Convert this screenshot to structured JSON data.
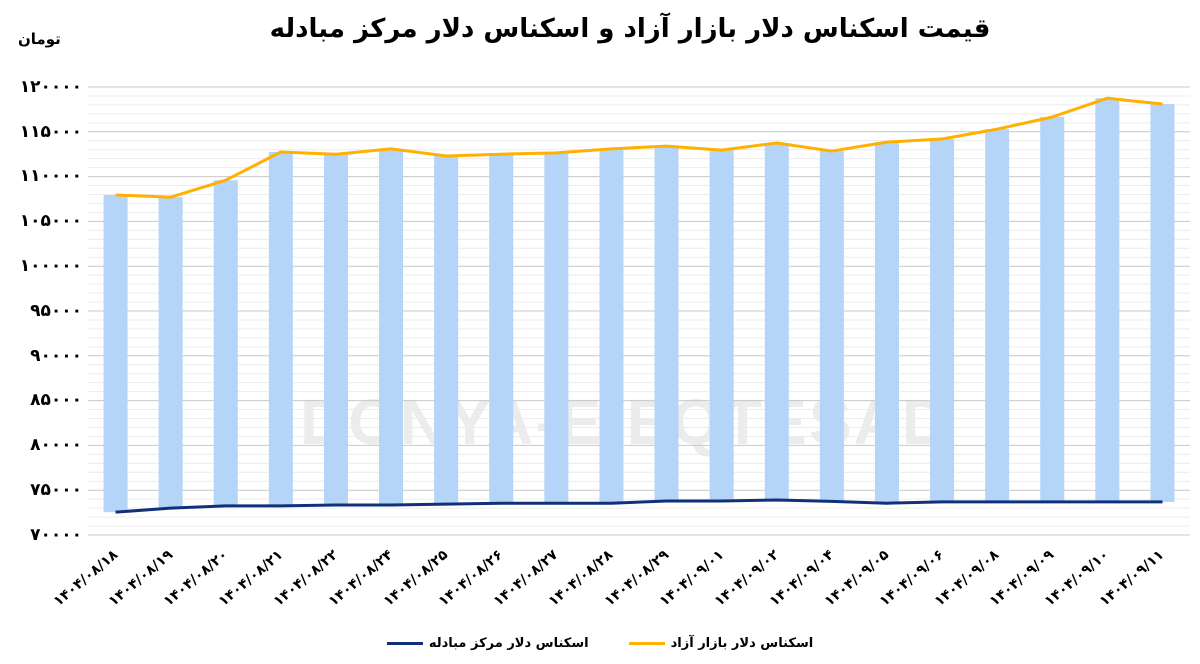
{
  "header": {
    "title": "قیمت اسکناس دلار بازار آزاد و اسکناس دلار مرکز مبادله",
    "unit_label": "تومان"
  },
  "watermark": "DONYA-E-EQTESAD",
  "colors": {
    "bar_fill": "#b4d4f8",
    "free_market_line": "#ffb000",
    "exchange_center_line": "#12307a",
    "major_grid": "#c8c8c8",
    "minor_grid": "#ececec"
  },
  "legend": {
    "items": [
      {
        "label": "اسکناس دلار بازار آزاد",
        "color": "#ffb000"
      },
      {
        "label": "اسکناس دلار مرکز مبادله",
        "color": "#12307a"
      }
    ]
  },
  "y_axis": {
    "ticks": [
      "۱۲۰۰۰۰",
      "۱۱۵۰۰۰",
      "۱۱۰۰۰۰",
      "۱۰۵۰۰۰",
      "۱۰۰۰۰۰",
      "۹۵۰۰۰",
      "۹۰۰۰۰",
      "۸۵۰۰۰",
      "۸۰۰۰۰",
      "۷۵۰۰۰",
      "۷۰۰۰۰"
    ]
  },
  "chart_data": {
    "type": "line",
    "title": "قیمت اسکناس دلار بازار آزاد و اسکناس دلار مرکز مبادله",
    "xlabel": "",
    "ylabel": "تومان",
    "ylim": [
      70000,
      120000
    ],
    "y_major_step": 5000,
    "y_minor_step": 1000,
    "grid": true,
    "legend_position": "bottom",
    "bars_note": "Light-blue floating bars span between the two series for each date",
    "categories": [
      "۱۴۰۴/۰۸/۱۸",
      "۱۴۰۴/۰۸/۱۹",
      "۱۴۰۴/۰۸/۲۰",
      "۱۴۰۴/۰۸/۲۱",
      "۱۴۰۴/۰۸/۲۲",
      "۱۴۰۴/۰۸/۲۴",
      "۱۴۰۴/۰۸/۲۵",
      "۱۴۰۴/۰۸/۲۶",
      "۱۴۰۴/۰۸/۲۷",
      "۱۴۰۴/۰۸/۲۸",
      "۱۴۰۴/۰۸/۲۹",
      "۱۴۰۴/۰۹/۰۱",
      "۱۴۰۴/۰۹/۰۲",
      "۱۴۰۴/۰۹/۰۴",
      "۱۴۰۴/۰۹/۰۵",
      "۱۴۰۴/۰۹/۰۶",
      "۱۴۰۴/۰۹/۰۸",
      "۱۴۰۴/۰۹/۰۹",
      "۱۴۰۴/۰۹/۱۰",
      "۱۴۰۴/۰۹/۱۱"
    ],
    "series": [
      {
        "name": "اسکناس دلار بازار آزاد",
        "color": "#ffb000",
        "values": [
          107950,
          107700,
          109600,
          112750,
          112500,
          113100,
          112300,
          112500,
          112650,
          113100,
          113400,
          112950,
          113750,
          112850,
          113850,
          114200,
          115300,
          116650,
          118750,
          118100
        ]
      },
      {
        "name": "اسکناس دلار مرکز مبادله",
        "color": "#12307a",
        "values": [
          72550,
          73000,
          73250,
          73250,
          73350,
          73350,
          73450,
          73550,
          73550,
          73550,
          73800,
          73800,
          73900,
          73750,
          73550,
          73700,
          73700,
          73700,
          73700,
          73700
        ]
      }
    ]
  }
}
